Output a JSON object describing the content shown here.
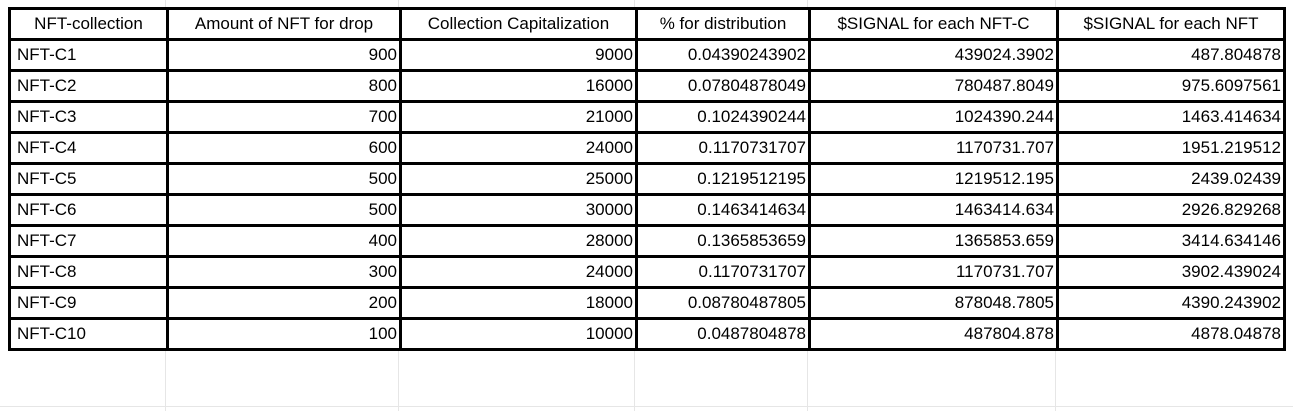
{
  "table": {
    "headers": [
      "NFT-collection",
      "Amount of NFT for drop",
      "Collection Capitalization",
      "% for distribution",
      "$SIGNAL for each NFT-C",
      "$SIGNAL for each NFT"
    ],
    "rows": [
      [
        "NFT-C1",
        "900",
        "9000",
        "0.04390243902",
        "439024.3902",
        "487.804878"
      ],
      [
        "NFT-C2",
        "800",
        "16000",
        "0.07804878049",
        "780487.8049",
        "975.6097561"
      ],
      [
        "NFT-C3",
        "700",
        "21000",
        "0.1024390244",
        "1024390.244",
        "1463.414634"
      ],
      [
        "NFT-C4",
        "600",
        "24000",
        "0.1170731707",
        "1170731.707",
        "1951.219512"
      ],
      [
        "NFT-C5",
        "500",
        "25000",
        "0.1219512195",
        "1219512.195",
        "2439.02439"
      ],
      [
        "NFT-C6",
        "500",
        "30000",
        "0.1463414634",
        "1463414.634",
        "2926.829268"
      ],
      [
        "NFT-C7",
        "400",
        "28000",
        "0.1365853659",
        "1365853.659",
        "3414.634146"
      ],
      [
        "NFT-C8",
        "300",
        "24000",
        "0.1170731707",
        "1170731.707",
        "3902.439024"
      ],
      [
        "NFT-C9",
        "200",
        "18000",
        "0.08780487805",
        "878048.7805",
        "4390.243902"
      ],
      [
        "NFT-C10",
        "100",
        "10000",
        "0.0487804878",
        "487804.878",
        "4878.04878"
      ]
    ]
  }
}
